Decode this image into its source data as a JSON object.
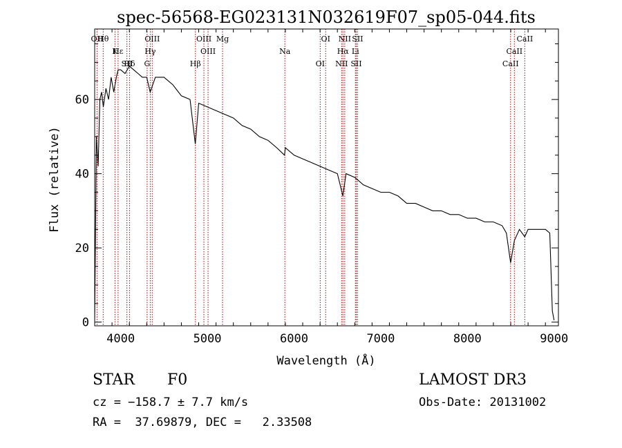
{
  "chart_data": {
    "type": "line",
    "title": "spec-56568-EG023131N032619F07_sp05-044.fits",
    "xlabel": "Wavelength (Å)",
    "ylabel": "Flux (relative)",
    "xlim": [
      3700,
      9050
    ],
    "ylim": [
      -1,
      79
    ],
    "xticks": [
      4000,
      5000,
      6000,
      7000,
      8000,
      9000
    ],
    "yticks": [
      0,
      20,
      40,
      60
    ],
    "grid": false,
    "series": [
      {
        "name": "flux",
        "x": [
          3700,
          3720,
          3740,
          3760,
          3780,
          3800,
          3830,
          3860,
          3890,
          3920,
          3950,
          3970,
          4000,
          4050,
          4100,
          4150,
          4200,
          4250,
          4300,
          4340,
          4400,
          4500,
          4600,
          4700,
          4800,
          4861,
          4900,
          5000,
          5100,
          5200,
          5300,
          5400,
          5500,
          5600,
          5700,
          5800,
          5890,
          5900,
          6000,
          6100,
          6200,
          6300,
          6400,
          6500,
          6563,
          6600,
          6700,
          6800,
          6900,
          7000,
          7100,
          7200,
          7300,
          7400,
          7500,
          7600,
          7700,
          7800,
          7900,
          8000,
          8100,
          8200,
          8300,
          8400,
          8450,
          8498,
          8542,
          8600,
          8662,
          8700,
          8800,
          8900,
          8950,
          8980,
          9000
        ],
        "values": [
          0.5,
          50,
          42,
          60,
          62,
          58,
          63,
          60,
          66,
          62,
          66,
          68,
          68,
          67,
          69,
          68,
          67,
          66,
          66,
          62,
          66,
          66,
          64,
          61,
          60,
          48,
          59,
          58,
          57,
          56,
          55,
          53,
          52,
          50,
          49,
          47,
          45,
          47,
          45,
          44,
          43,
          42,
          41,
          40,
          34,
          40,
          39,
          37,
          36,
          35,
          35,
          34,
          32,
          32,
          31,
          30,
          30,
          29,
          29,
          28,
          28,
          27,
          27,
          26,
          24,
          16,
          22,
          25,
          23,
          25,
          25,
          25,
          24,
          3,
          0.5
        ]
      }
    ],
    "line_markers": [
      {
        "label": "Hθ",
        "wavelength": 3798
      },
      {
        "label": "K",
        "wavelength": 3934
      },
      {
        "label": "Hδ",
        "wavelength": 4102
      },
      {
        "label": "OII",
        "wavelength": 3727
      },
      {
        "label": "Hε",
        "wavelength": 3970
      },
      {
        "label": "SII",
        "wavelength": 4072
      },
      {
        "label": "OIII",
        "wavelength": 4364
      },
      {
        "label": "Hγ",
        "wavelength": 4341
      },
      {
        "label": "G",
        "wavelength": 4305
      },
      {
        "label": "OIII",
        "wavelength": 4960
      },
      {
        "label": "OIII",
        "wavelength": 5008
      },
      {
        "label": "Hβ",
        "wavelength": 4862
      },
      {
        "label": "Mg",
        "wavelength": 5175
      },
      {
        "label": "Na",
        "wavelength": 5894
      },
      {
        "label": "OI",
        "wavelength": 6302
      },
      {
        "label": "OI",
        "wavelength": 6365
      },
      {
        "label": "Hα",
        "wavelength": 6564
      },
      {
        "label": "SII",
        "wavelength": 6718
      },
      {
        "label": "NII",
        "wavelength": 6585
      },
      {
        "label": "Li",
        "wavelength": 6708
      },
      {
        "label": "NII",
        "wavelength": 6549
      },
      {
        "label": "SII",
        "wavelength": 6733
      },
      {
        "label": "CaII",
        "wavelength": 8542
      },
      {
        "label": "CaII",
        "wavelength": 8498
      },
      {
        "label": "CaII",
        "wavelength": 8662
      }
    ]
  },
  "info": {
    "class_label": "STAR",
    "subclass": "F0",
    "survey": "LAMOST DR3",
    "cz_line": "cz = −158.7 ± 7.7 km/s",
    "obs_date": "Obs-Date: 20131002",
    "coords": "RA =  37.69879, DEC =   2.33508"
  },
  "colors": {
    "spectrum": "#000000",
    "marker_line": "#b00000",
    "text": "#000000"
  }
}
